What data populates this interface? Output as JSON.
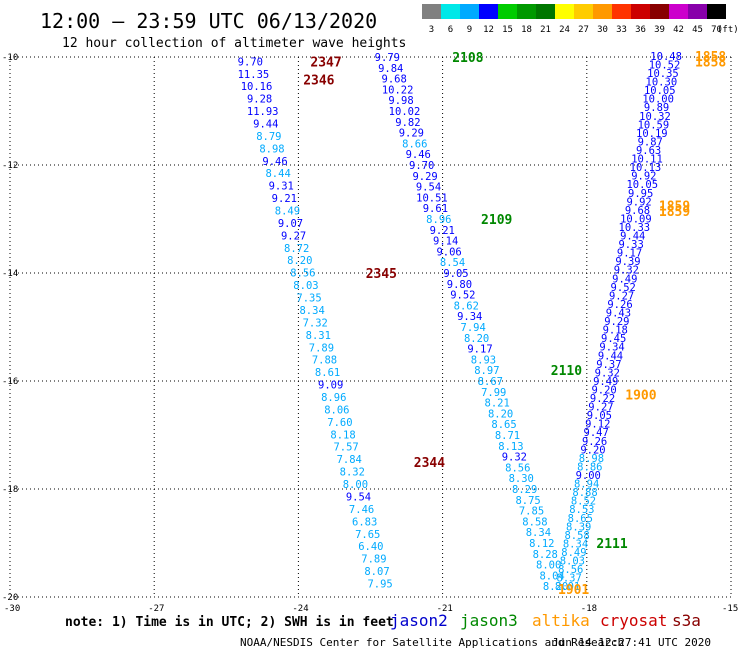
{
  "header": {
    "title": "12:00 — 23:59 UTC 06/13/2020",
    "subtitle": "12 hour collection of altimeter wave heights"
  },
  "scale": {
    "values": [
      "3",
      "6",
      "9",
      "12",
      "15",
      "18",
      "21",
      "24",
      "27",
      "30",
      "33",
      "36",
      "39",
      "42",
      "45",
      "70"
    ],
    "unit": "(ft)",
    "colors": [
      "#808080",
      "#00e8e8",
      "#00aaff",
      "#0000ff",
      "#00cc00",
      "#009900",
      "#007700",
      "#ffff00",
      "#ffcc00",
      "#ff9900",
      "#ff3300",
      "#cc0000",
      "#880000",
      "#cc00cc",
      "#8800aa",
      "#000000"
    ]
  },
  "footer": {
    "note": "note: 1) Time is in UTC; 2) SWH is in feet",
    "legend": [
      {
        "name": "jason2",
        "color": "#0000cc"
      },
      {
        "name": "jason3",
        "color": "#008800"
      },
      {
        "name": "altika",
        "color": "#ff9900"
      },
      {
        "name": "cryosat",
        "color": "#cc0000"
      },
      {
        "name": "s3a",
        "color": "#880000"
      }
    ],
    "credit": "NOAA/NESDIS Center for Satellite Applications and Research",
    "timestamp": "Jun 14 12:27:41 UTC 2020"
  },
  "chart_data": {
    "type": "scatter",
    "xlim": [
      -30,
      -15
    ],
    "ylim": [
      -20,
      -10
    ],
    "xticks": [
      "-30",
      "-27",
      "-24",
      "-21",
      "-18",
      "-15"
    ],
    "yticks": [
      "-10",
      "-12",
      "-14",
      "-16",
      "-18",
      "-20"
    ],
    "grid": true,
    "tracks": [
      {
        "satellite": "cryosat",
        "color_key": "s3a",
        "time_labels": [
          {
            "text": "2347",
            "lon": -23.75,
            "lat": -10.08
          },
          {
            "text": "2346",
            "lon": -23.9,
            "lat": -10.42
          },
          {
            "text": "2345",
            "lon": -22.6,
            "lat": -14.0
          },
          {
            "text": "2344",
            "lon": -21.6,
            "lat": -17.5
          }
        ],
        "start": {
          "lon": -25.0,
          "lat": -10.08
        },
        "end": {
          "lon": -22.3,
          "lat": -19.75
        },
        "values": [
          "9.70",
          "11.35",
          "10.16",
          "9.28",
          "11.93",
          "9.44",
          "8.79",
          "8.98",
          "9.46",
          "8.44",
          "9.31",
          "9.21",
          "8.49",
          "9.07",
          "9.27",
          "8.72",
          "8.20",
          "8.56",
          "8.03",
          "7.35",
          "8.34",
          "7.32",
          "8.31",
          "7.89",
          "7.88",
          "8.61",
          "9.09",
          "8.96",
          "8.06",
          "7.60",
          "8.18",
          "7.57",
          "7.84",
          "8.32",
          "8.00",
          "9.54",
          "7.46",
          "6.83",
          "7.65",
          "6.40",
          "7.89",
          "8.07",
          "7.95"
        ]
      },
      {
        "satellite": "jason3",
        "time_labels": [
          {
            "text": "2108",
            "lon": -20.8,
            "lat": -10.0
          },
          {
            "text": "2109",
            "lon": -20.2,
            "lat": -13.0
          },
          {
            "text": "2110",
            "lon": -18.75,
            "lat": -15.8
          },
          {
            "text": "2111",
            "lon": -17.8,
            "lat": -19.0
          }
        ],
        "start": {
          "lon": -22.15,
          "lat": -10.0
        },
        "end": {
          "lon": -18.65,
          "lat": -19.8
        },
        "values": [
          "9.79",
          "9.84",
          "9.68",
          "10.22",
          "9.98",
          "10.02",
          "9.82",
          "9.29",
          "8.66",
          "9.46",
          "9.70",
          "9.29",
          "9.54",
          "10.51",
          "9.61",
          "8.96",
          "9.21",
          "9.14",
          "9.06",
          "8.54",
          "9.05",
          "9.80",
          "9.52",
          "8.62",
          "9.34",
          "7.94",
          "8.20",
          "9.17",
          "8.93",
          "8.97",
          "8.67",
          "7.99",
          "8.21",
          "8.20",
          "8.65",
          "8.71",
          "8.13",
          "9.32",
          "8.56",
          "8.30",
          "8.29",
          "8.75",
          "7.85",
          "8.58",
          "8.34",
          "8.12",
          "8.28",
          "8.00",
          "8.04",
          "8.20"
        ]
      },
      {
        "satellite": "altika",
        "color_key": "altika",
        "time_labels": [
          {
            "text": "1858",
            "lon": -15.75,
            "lat": -9.98
          },
          {
            "text": "1858",
            "lon": -15.75,
            "lat": -10.08
          },
          {
            "text": "1859",
            "lon": -16.5,
            "lat": -12.75
          },
          {
            "text": "1859",
            "lon": -16.5,
            "lat": -12.85
          },
          {
            "text": "1900",
            "lon": -17.2,
            "lat": -16.25
          },
          {
            "text": "1901",
            "lon": -18.6,
            "lat": -19.85
          }
        ],
        "start": {
          "lon": -16.35,
          "lat": -9.98
        },
        "end": {
          "lon": -18.4,
          "lat": -19.8
        },
        "values": [
          "10.48",
          "10.52",
          "10.35",
          "10.30",
          "10.05",
          "10.00",
          "9.89",
          "10.32",
          "10.59",
          "10.19",
          "9.87",
          "9.63",
          "10.11",
          "10.13",
          "9.92",
          "10.05",
          "9.95",
          "9.92",
          "9.68",
          "10.09",
          "10.33",
          "9.44",
          "9.33",
          "9.17",
          "9.39",
          "9.32",
          "9.49",
          "9.52",
          "9.27",
          "9.26",
          "9.43",
          "9.29",
          "9.18",
          "9.45",
          "9.34",
          "9.44",
          "9.37",
          "9.32",
          "9.49",
          "9.20",
          "9.22",
          "9.27",
          "9.05",
          "9.12",
          "9.47",
          "9.26",
          "9.20",
          "8.98",
          "8.86",
          "9.00",
          "8.94",
          "8.88",
          "8.52",
          "8.53",
          "8.65",
          "8.39",
          "8.58",
          "8.34",
          "8.49",
          "8.03",
          "8.56",
          "8.37",
          "8.01"
        ]
      }
    ]
  }
}
